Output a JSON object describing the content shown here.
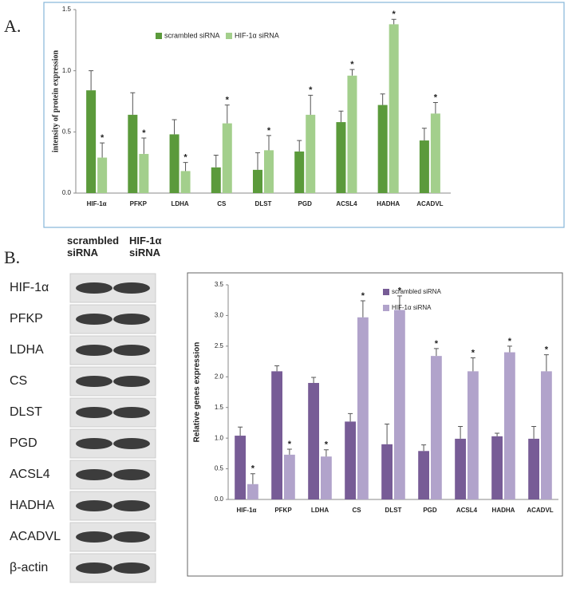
{
  "panels": {
    "a_label": "A.",
    "b_label": "B."
  },
  "blot": {
    "column_labels": [
      "scrambled siRNA",
      "HIF-1α siRNA"
    ],
    "row_labels": [
      "HIF-1α",
      "PFKP",
      "LDHA",
      "CS",
      "DLST",
      "PGD",
      "ACSL4",
      "HADHA",
      "ACADVL",
      "β-actin"
    ]
  },
  "chart_data": [
    {
      "type": "bar",
      "y_label": "intensity of protein expression",
      "categories": [
        "HIF-1α",
        "PFKP",
        "LDHA",
        "CS",
        "DLST",
        "PGD",
        "ACSL4",
        "HADHA",
        "ACADVL"
      ],
      "series": [
        {
          "name": "scrambled siRNA",
          "color": "#5b9a3b",
          "values": [
            0.84,
            0.64,
            0.48,
            0.21,
            0.19,
            0.34,
            0.58,
            0.72,
            0.43
          ],
          "errors": [
            0.16,
            0.18,
            0.12,
            0.1,
            0.14,
            0.09,
            0.09,
            0.09,
            0.1
          ]
        },
        {
          "name": "HIF-1α siRNA",
          "color": "#a3cf8c",
          "values": [
            0.29,
            0.32,
            0.18,
            0.57,
            0.35,
            0.64,
            0.96,
            1.38,
            0.65
          ],
          "errors": [
            0.12,
            0.13,
            0.07,
            0.15,
            0.12,
            0.16,
            0.05,
            0.04,
            0.09
          ],
          "significance": [
            "*",
            "*",
            "*",
            "*",
            "*",
            "*",
            "*",
            "*",
            "*"
          ]
        }
      ],
      "ylim": [
        0,
        1.5
      ],
      "yticks": [
        {
          "value": 0,
          "label": "0.0"
        },
        0.5,
        {
          "value": 1,
          "label": "1.0"
        },
        1.5
      ],
      "grid": false,
      "legend": "top"
    },
    {
      "type": "bar",
      "y_label": "Relative genes expression",
      "categories": [
        "HIF-1α",
        "PFKP",
        "LDHA",
        "CS",
        "DLST",
        "PGD",
        "ACSL4",
        "HADHA",
        "ACADVL"
      ],
      "series": [
        {
          "name": "scrambled siRNA",
          "color": "#775c96",
          "values": [
            1.04,
            2.09,
            1.9,
            1.27,
            0.9,
            0.79,
            0.99,
            1.03,
            0.99
          ],
          "errors": [
            0.14,
            0.09,
            0.09,
            0.13,
            0.33,
            0.1,
            0.2,
            0.05,
            0.2
          ]
        },
        {
          "name": "HIF-1α siRNA",
          "color": "#b1a3cb",
          "values": [
            0.25,
            0.73,
            0.7,
            2.97,
            3.09,
            2.34,
            2.09,
            2.4,
            2.09
          ],
          "errors": [
            0.17,
            0.09,
            0.11,
            0.27,
            0.23,
            0.12,
            0.22,
            0.1,
            0.27
          ],
          "significance": [
            "*",
            "*",
            "*",
            "*",
            "*",
            "*",
            "*",
            "*",
            "*"
          ]
        }
      ],
      "ylim": [
        0,
        3.5
      ],
      "yticks": [
        {
          "value": 0,
          "label": "0.0"
        },
        0.5,
        {
          "value": 1,
          "label": "1.0"
        },
        1.5,
        {
          "value": 2,
          "label": "2.0"
        },
        {
          "value": 2.5,
          "label": "2.5"
        },
        {
          "value": 3,
          "label": "3.0"
        },
        {
          "value": 3.5,
          "label": "3.5"
        }
      ],
      "grid": false,
      "legend": "upper right"
    }
  ]
}
